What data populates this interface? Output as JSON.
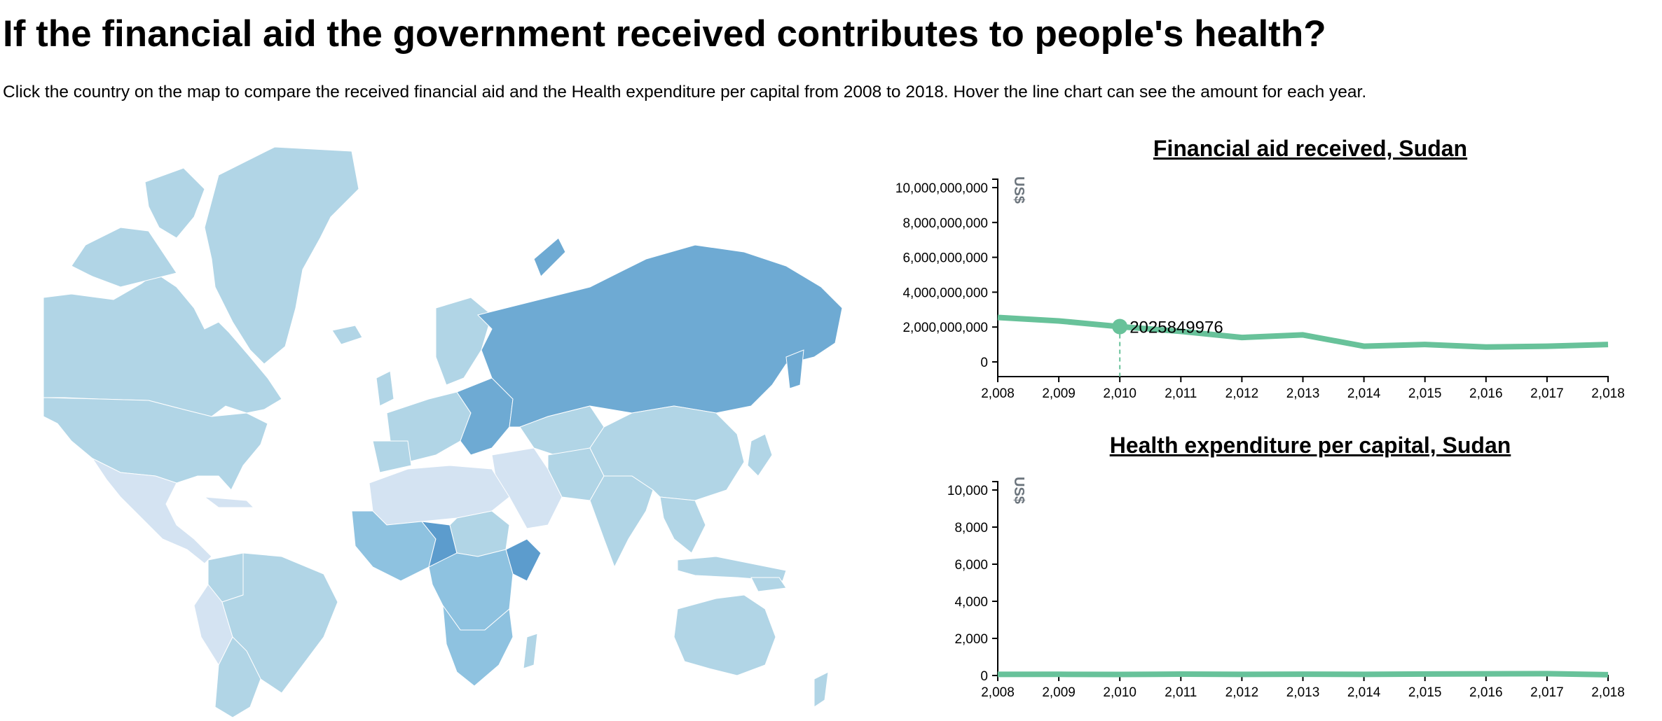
{
  "header": {
    "title": "If the financial aid the government received contributes to people's health?",
    "subtitle": "Click the country on the map to compare the received financial aid and the Health expenditure per capital from 2008 to 2018. Hover the line chart can see the amount for each year."
  },
  "colors": {
    "light": "#d4e3f2",
    "medium": "#b1d5e6",
    "mid": "#8ec2e0",
    "dark": "#6eaad3",
    "darker": "#5c9ccd",
    "line": "#68c29a"
  },
  "aid_chart": {
    "title": "Financial aid received, Sudan",
    "unit": "US$",
    "hover": {
      "year": 2010,
      "label": "2025849976"
    },
    "chart_data": {
      "type": "line",
      "x": [
        2008,
        2009,
        2010,
        2011,
        2012,
        2013,
        2014,
        2015,
        2016,
        2017,
        2018
      ],
      "x_tick_labels": [
        "2,008",
        "2,009",
        "2,010",
        "2,011",
        "2,012",
        "2,013",
        "2,014",
        "2,015",
        "2,016",
        "2,017",
        "2,018"
      ],
      "values": [
        2550000000,
        2350000000,
        2025849976,
        1750000000,
        1400000000,
        1550000000,
        900000000,
        1000000000,
        850000000,
        900000000,
        1000000000
      ],
      "ylim": [
        0,
        10000000000
      ],
      "y_ticks": [
        0,
        2000000000,
        4000000000,
        6000000000,
        8000000000,
        10000000000
      ],
      "y_tick_labels": [
        "0",
        "2,000,000,000",
        "4,000,000,000",
        "6,000,000,000",
        "8,000,000,000",
        "10,000,000,000"
      ]
    }
  },
  "health_chart": {
    "title": "Health expenditure per capital, Sudan",
    "unit": "US$",
    "chart_data": {
      "type": "line",
      "x": [
        2008,
        2009,
        2010,
        2011,
        2012,
        2013,
        2014,
        2015,
        2016,
        2017,
        2018
      ],
      "x_tick_labels": [
        "2,008",
        "2,009",
        "2,010",
        "2,011",
        "2,012",
        "2,013",
        "2,014",
        "2,015",
        "2,016",
        "2,017",
        "2,018"
      ],
      "values": [
        60,
        65,
        55,
        75,
        60,
        70,
        60,
        80,
        90,
        100,
        40
      ],
      "ylim": [
        0,
        10000
      ],
      "y_ticks": [
        0,
        2000,
        4000,
        6000,
        8000,
        10000
      ],
      "y_tick_labels": [
        "0",
        "2,000",
        "4,000",
        "6,000",
        "8,000",
        "10,000"
      ]
    }
  }
}
